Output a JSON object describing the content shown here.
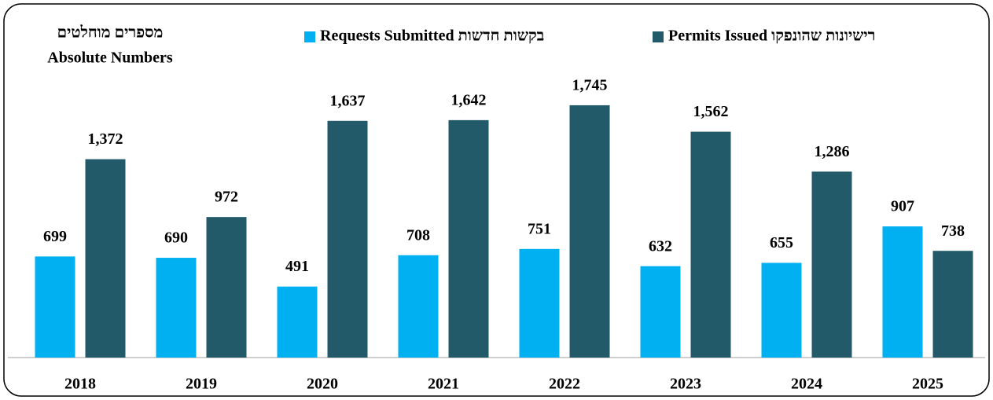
{
  "chart_data": {
    "type": "bar",
    "title": "מספרים מוחלטים",
    "subtitle": "Absolute Numbers",
    "categories": [
      "2018",
      "2019",
      "2020",
      "2021",
      "2022",
      "2023",
      "2024",
      "2025"
    ],
    "series": [
      {
        "name": "Requests Submitted בקשות חדשות",
        "color": "#00b0f0",
        "values": [
          699,
          690,
          491,
          708,
          751,
          632,
          655,
          907
        ]
      },
      {
        "name": "Permits Issued רישיונות שהונפקו",
        "color": "#235a6a",
        "values": [
          1372,
          972,
          1637,
          1642,
          1745,
          1562,
          1286,
          738
        ],
        "value_labels": [
          "1,372",
          "972",
          "1,637",
          "1,642",
          "1,745",
          "1,562",
          "1,286",
          "738"
        ]
      }
    ],
    "ylim": [
      0,
      2000
    ],
    "legend": "top"
  }
}
